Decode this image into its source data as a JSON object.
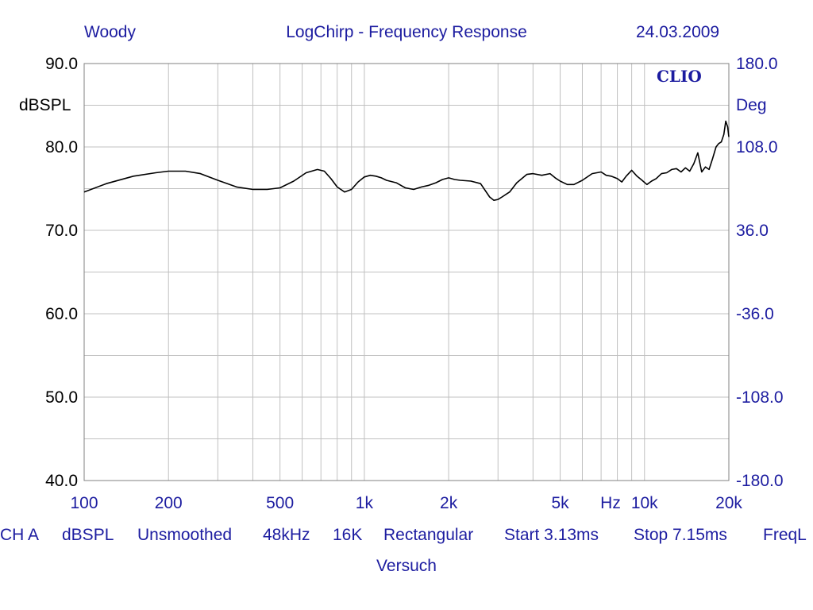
{
  "header": {
    "left": "Woody",
    "center": "LogChirp - Frequency Response",
    "right": "24.03.2009"
  },
  "brand": "CLIO",
  "footer": {
    "items": [
      "CH A",
      "dBSPL",
      "Unsmoothed",
      "48kHz",
      "16K",
      "Rectangular",
      "Start 3.13ms",
      "Stop 7.15ms",
      "FreqL"
    ],
    "label": "Versuch"
  },
  "colors": {
    "text_blue": "#1c1ca0",
    "grid": "#c0c0c0",
    "curve": "#000000"
  },
  "chart_data": {
    "type": "line",
    "x_scale": "log",
    "xlim": [
      100,
      20000
    ],
    "x_tick_labels": [
      {
        "x": 100,
        "label": "100"
      },
      {
        "x": 200,
        "label": "200"
      },
      {
        "x": 500,
        "label": "500"
      },
      {
        "x": 1000,
        "label": "1k"
      },
      {
        "x": 2000,
        "label": "2k"
      },
      {
        "x": 5000,
        "label": "5k"
      },
      {
        "x": 10000,
        "label": "10k"
      },
      {
        "x": 20000,
        "label": "20k"
      }
    ],
    "x_unit_label": "Hz",
    "ylim": [
      40,
      90
    ],
    "ylabel": "dBSPL",
    "y_tick_labels": [
      "90.0",
      "80.0",
      "70.0",
      "60.0",
      "50.0",
      "40.0"
    ],
    "y2lim": [
      -180,
      180
    ],
    "y2label": "Deg",
    "y2_tick_labels": [
      "180.0",
      "108.0",
      "36.0",
      "-36.0",
      "-108.0",
      "-180.0"
    ],
    "grid": true,
    "series": [
      {
        "x": [
          100,
          120,
          150,
          180,
          200,
          230,
          260,
          300,
          350,
          400,
          450,
          500,
          560,
          620,
          680,
          720,
          760,
          800,
          850,
          900,
          950,
          1000,
          1050,
          1100,
          1150,
          1200,
          1300,
          1400,
          1500,
          1600,
          1700,
          1800,
          1900,
          2000,
          2100,
          2200,
          2400,
          2600,
          2800,
          2900,
          3000,
          3100,
          3300,
          3500,
          3800,
          4000,
          4300,
          4600,
          4800,
          5000,
          5300,
          5600,
          6000,
          6500,
          7000,
          7300,
          7600,
          8000,
          8300,
          8600,
          9000,
          9400,
          9800,
          10200,
          10600,
          11000,
          11500,
          12000,
          12500,
          13000,
          13500,
          14000,
          14500,
          15000,
          15500,
          16000,
          16500,
          17000,
          17500,
          18000,
          18400,
          18800,
          19200,
          19500,
          19800,
          20000
        ],
        "y": [
          74.6,
          75.6,
          76.5,
          76.9,
          77.1,
          77.1,
          76.8,
          76.0,
          75.2,
          74.9,
          74.9,
          75.1,
          75.9,
          76.9,
          77.3,
          77.1,
          76.2,
          75.2,
          74.6,
          74.9,
          75.8,
          76.4,
          76.6,
          76.5,
          76.3,
          76.0,
          75.7,
          75.1,
          74.9,
          75.2,
          75.4,
          75.7,
          76.1,
          76.3,
          76.1,
          76.0,
          75.9,
          75.6,
          74.0,
          73.6,
          73.7,
          74.0,
          74.6,
          75.7,
          76.7,
          76.8,
          76.6,
          76.8,
          76.3,
          75.9,
          75.5,
          75.5,
          76.0,
          76.8,
          77.0,
          76.6,
          76.5,
          76.2,
          75.8,
          76.5,
          77.2,
          76.5,
          76.0,
          75.5,
          75.9,
          76.2,
          76.8,
          76.9,
          77.3,
          77.4,
          77.0,
          77.5,
          77.1,
          78.0,
          79.3,
          77.0,
          77.6,
          77.3,
          78.6,
          80.0,
          80.4,
          80.6,
          81.5,
          83.1,
          82.4,
          81.2
        ]
      }
    ]
  }
}
